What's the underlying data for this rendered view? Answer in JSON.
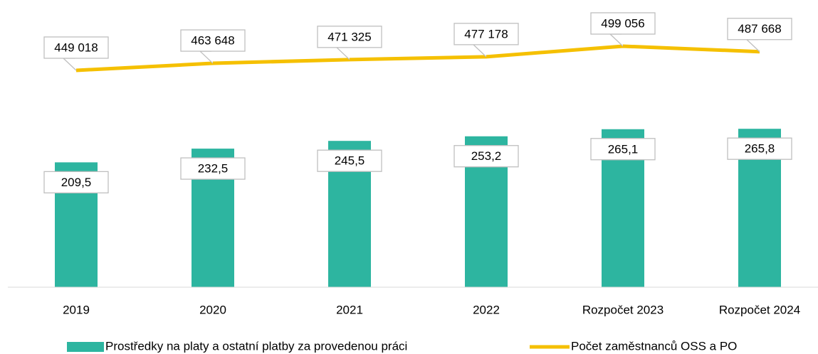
{
  "chart_data": {
    "type": "bar_line",
    "categories": [
      "2019",
      "2020",
      "2021",
      "2022",
      "Rozpočet 2023",
      "Rozpočet 2024"
    ],
    "series": [
      {
        "name": "Prostředky na platy a ostatní platby za provedenou práci",
        "type": "bar",
        "color": "#2db5a0",
        "values": [
          209.5,
          232.5,
          245.5,
          253.2,
          265.1,
          265.8
        ],
        "value_labels": [
          "209,5",
          "232,5",
          "245,5",
          "253,2",
          "265,1",
          "265,8"
        ]
      },
      {
        "name": "Počet zaměstnanců OSS a PO",
        "type": "line",
        "axis": "y2",
        "color": "#f5c000",
        "values": [
          449018,
          463648,
          471325,
          477178,
          499056,
          487668
        ],
        "value_labels": [
          "449 018",
          "463 648",
          "471 325",
          "477 178",
          "499 056",
          "487 668"
        ]
      }
    ],
    "ylim": [
      0,
      470
    ],
    "y2lim": [
      0,
      580000
    ],
    "legend": "bottom"
  }
}
